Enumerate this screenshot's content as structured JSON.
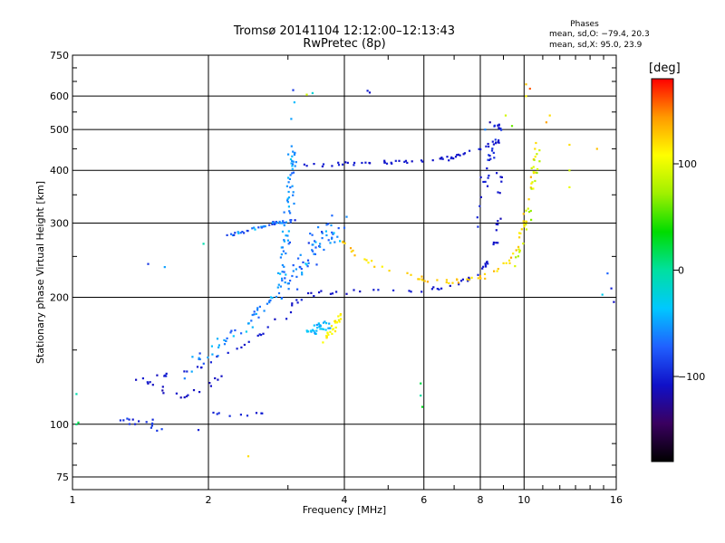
{
  "header": {
    "title": "Tromsø 20141104 12:12:00–12:13:43",
    "subtitle": "RwPretec (8p)"
  },
  "stats": {
    "heading": "Phases",
    "o_mode": "mean, sd,O: −79.4, 20.3",
    "x_mode": "mean, sd,X:  95.0, 23.9"
  },
  "colorbar": {
    "unit_label": "[deg]",
    "range": [
      -180,
      180
    ],
    "ticks": [
      {
        "value": 100,
        "label": "100"
      },
      {
        "value": 0,
        "label": "0"
      },
      {
        "value": -100,
        "label": "−100"
      }
    ],
    "colors": [
      "#000000",
      "#3a0060",
      "#1010c8",
      "#2060ff",
      "#00c8ff",
      "#00e0a0",
      "#00dc00",
      "#a0f000",
      "#ffff00",
      "#ff9900",
      "#ff0000"
    ]
  },
  "chart_data": {
    "type": "scatter",
    "title": "Tromsø 20141104 12:12:00–12:13:43",
    "subtitle": "RwPretec (8p)",
    "xlabel": "Frequency [MHz]",
    "ylabel": "Stationary phase Virtual Height [km]",
    "x_scale": "log",
    "y_scale": "log",
    "xlim": [
      1,
      16
    ],
    "ylim": [
      70,
      750
    ],
    "x_ticks": [
      {
        "value": 1,
        "label": "1"
      },
      {
        "value": 2,
        "label": "2"
      },
      {
        "value": 4,
        "label": "4"
      },
      {
        "value": 6,
        "label": "6"
      },
      {
        "value": 8,
        "label": "8"
      },
      {
        "value": 10,
        "label": "10"
      },
      {
        "value": 16,
        "label": "16"
      }
    ],
    "x_minor": [
      3,
      5,
      7,
      9,
      11,
      12,
      13,
      14,
      15
    ],
    "y_ticks": [
      {
        "value": 75,
        "label": "75"
      },
      {
        "value": 100,
        "label": "100"
      },
      {
        "value": 200,
        "label": "200"
      },
      {
        "value": 300,
        "label": "300"
      },
      {
        "value": 400,
        "label": "400"
      },
      {
        "value": 500,
        "label": "500"
      },
      {
        "value": 600,
        "label": "600"
      },
      {
        "value": 750,
        "label": "750"
      }
    ],
    "y_minor": [
      80,
      90,
      150,
      250,
      350,
      450,
      550,
      650,
      700
    ],
    "grid": true,
    "color_variable": "phase [deg]",
    "trace_groups": [
      {
        "mode": "O",
        "phase": -105,
        "spread": 12,
        "n": 80,
        "jf": 0.03,
        "jh": 0.02,
        "path": [
          [
            1.4,
            128
          ],
          [
            1.7,
            132
          ],
          [
            2.1,
            142
          ],
          [
            2.5,
            158
          ],
          [
            2.9,
            178
          ],
          [
            3.2,
            200
          ],
          [
            3.5,
            205
          ],
          [
            4.5,
            207
          ],
          [
            6,
            208
          ],
          [
            7,
            214
          ],
          [
            7.8,
            222
          ],
          [
            8.3,
            240
          ],
          [
            8.6,
            270
          ],
          [
            8.8,
            330
          ],
          [
            8.9,
            400
          ]
        ]
      },
      {
        "mode": "O",
        "phase": -105,
        "spread": 10,
        "n": 60,
        "jf": 0.02,
        "jh": 0.015,
        "path": [
          [
            3.1,
            410
          ],
          [
            4,
            415
          ],
          [
            5,
            418
          ],
          [
            6,
            420
          ],
          [
            7,
            430
          ],
          [
            8,
            450
          ],
          [
            8.8,
            470
          ]
        ]
      },
      {
        "mode": "O",
        "phase": -110,
        "spread": 12,
        "n": 20,
        "jf": 0.02,
        "jh": 0.03,
        "path": [
          [
            1.4,
            128
          ],
          [
            1.55,
            122
          ],
          [
            1.75,
            116
          ],
          [
            1.95,
            122
          ],
          [
            2.15,
            130
          ]
        ]
      },
      {
        "mode": "O",
        "phase": -100,
        "spread": 20,
        "n": 30,
        "jf": 0.03,
        "jh": 0.08,
        "path": [
          [
            7.9,
            300
          ],
          [
            8.3,
            400
          ],
          [
            8.6,
            480
          ],
          [
            8.9,
            520
          ]
        ]
      },
      {
        "mode": "O",
        "phase": -95,
        "spread": 20,
        "n": 14,
        "jf": 0.03,
        "jh": 0.04,
        "path": [
          [
            1.25,
            100
          ],
          [
            1.35,
            103
          ],
          [
            1.5,
            102
          ],
          [
            1.55,
            97
          ]
        ]
      },
      {
        "mode": "O",
        "phase": -100,
        "spread": 10,
        "n": 8,
        "jf": 0.02,
        "jh": 0.01,
        "path": [
          [
            2.05,
            106
          ],
          [
            2.2,
            105
          ],
          [
            2.5,
            106
          ],
          [
            2.7,
            106
          ]
        ]
      },
      {
        "mode": "mix",
        "phase": -60,
        "spread": 40,
        "n": 120,
        "jf": 0.07,
        "jh": 0.1,
        "path": [
          [
            1.8,
            135
          ],
          [
            2.2,
            160
          ],
          [
            2.7,
            190
          ],
          [
            3,
            220
          ],
          [
            3.3,
            250
          ],
          [
            3.6,
            280
          ],
          [
            3.9,
            300
          ]
        ]
      },
      {
        "mode": "mix",
        "phase": -70,
        "spread": 40,
        "n": 40,
        "jf": 0.02,
        "jh": 0.015,
        "path": [
          [
            2.2,
            280
          ],
          [
            2.5,
            290
          ],
          [
            2.8,
            300
          ],
          [
            3.1,
            305
          ]
        ]
      },
      {
        "mode": "mix",
        "phase": -55,
        "spread": 30,
        "n": 60,
        "jf": 0.03,
        "jh": 0.12,
        "path": [
          [
            2.9,
            230
          ],
          [
            3,
            300
          ],
          [
            3.05,
            380
          ],
          [
            3.1,
            470
          ]
        ]
      },
      {
        "mode": "mix",
        "phase": -40,
        "spread": 25,
        "n": 30,
        "jf": 0.02,
        "jh": 0.04,
        "path": [
          [
            3.3,
            165
          ],
          [
            3.5,
            168
          ],
          [
            3.7,
            172
          ]
        ]
      },
      {
        "mode": "X",
        "phase": 125,
        "spread": 25,
        "n": 70,
        "jf": 0.02,
        "jh": 0.025,
        "path": [
          [
            3.9,
            275
          ],
          [
            4.3,
            250
          ],
          [
            5,
            230
          ],
          [
            6,
            220
          ],
          [
            7,
            218
          ],
          [
            8,
            222
          ],
          [
            9,
            235
          ],
          [
            9.6,
            260
          ],
          [
            10,
            300
          ],
          [
            10.4,
            380
          ],
          [
            10.6,
            470
          ]
        ]
      },
      {
        "mode": "X",
        "phase": 110,
        "spread": 25,
        "n": 25,
        "jf": 0.02,
        "jh": 0.04,
        "path": [
          [
            3.6,
            160
          ],
          [
            3.8,
            170
          ],
          [
            3.9,
            185
          ]
        ]
      },
      {
        "mode": "X",
        "phase": 85,
        "spread": 25,
        "n": 25,
        "jf": 0.03,
        "jh": 0.05,
        "path": [
          [
            9.6,
            240
          ],
          [
            10.1,
            300
          ],
          [
            10.5,
            380
          ],
          [
            10.8,
            450
          ]
        ]
      }
    ],
    "isolated_points": [
      {
        "f": 1.02,
        "h": 100,
        "phase": 10
      },
      {
        "f": 1.03,
        "h": 101,
        "phase": 20
      },
      {
        "f": 1.02,
        "h": 118,
        "phase": -5
      },
      {
        "f": 1.47,
        "h": 240,
        "phase": -90
      },
      {
        "f": 1.6,
        "h": 236,
        "phase": -50
      },
      {
        "f": 1.9,
        "h": 97,
        "phase": -100
      },
      {
        "f": 1.95,
        "h": 268,
        "phase": -5
      },
      {
        "f": 2.45,
        "h": 84,
        "phase": 120
      },
      {
        "f": 3.08,
        "h": 620,
        "phase": -90
      },
      {
        "f": 3.1,
        "h": 580,
        "phase": -40
      },
      {
        "f": 3.05,
        "h": 530,
        "phase": -50
      },
      {
        "f": 3.3,
        "h": 605,
        "phase": 90
      },
      {
        "f": 3.4,
        "h": 610,
        "phase": -20
      },
      {
        "f": 4.5,
        "h": 618,
        "phase": -100
      },
      {
        "f": 4.55,
        "h": 612,
        "phase": -110
      },
      {
        "f": 5.9,
        "h": 125,
        "phase": 20
      },
      {
        "f": 5.95,
        "h": 110,
        "phase": 30
      },
      {
        "f": 5.9,
        "h": 117,
        "phase": 0
      },
      {
        "f": 10.1,
        "h": 640,
        "phase": 130
      },
      {
        "f": 10.3,
        "h": 625,
        "phase": 160
      },
      {
        "f": 10.1,
        "h": 600,
        "phase": 110
      },
      {
        "f": 11.4,
        "h": 540,
        "phase": 120
      },
      {
        "f": 11.2,
        "h": 520,
        "phase": 140
      },
      {
        "f": 12.6,
        "h": 460,
        "phase": 120
      },
      {
        "f": 12.6,
        "h": 400,
        "phase": 90
      },
      {
        "f": 12.6,
        "h": 365,
        "phase": 100
      },
      {
        "f": 14.5,
        "h": 450,
        "phase": 130
      },
      {
        "f": 15.3,
        "h": 228,
        "phase": -70
      },
      {
        "f": 15.6,
        "h": 210,
        "phase": -100
      },
      {
        "f": 15.8,
        "h": 195,
        "phase": -110
      },
      {
        "f": 14.9,
        "h": 203,
        "phase": -30
      },
      {
        "f": 8.4,
        "h": 520,
        "phase": -120
      },
      {
        "f": 8.2,
        "h": 500,
        "phase": -60
      },
      {
        "f": 9.1,
        "h": 540,
        "phase": 90
      },
      {
        "f": 9.4,
        "h": 510,
        "phase": 60
      }
    ]
  }
}
